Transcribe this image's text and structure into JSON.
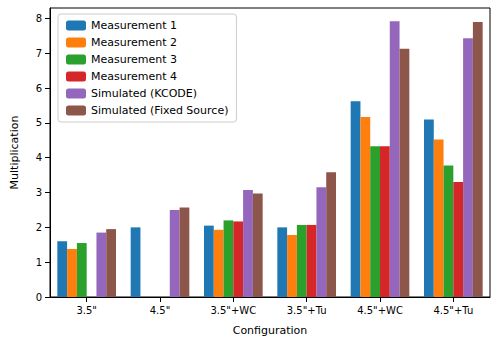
{
  "chart_data": {
    "type": "bar",
    "x_label": "Configuration",
    "y_label": "Multiplication",
    "categories": [
      "3.5\"",
      "4.5\"",
      "3.5\"+WC",
      "3.5\"+Tu",
      "4.5\"+WC",
      "4.5\"+Tu"
    ],
    "series": [
      {
        "name": "Measurement 1",
        "color": "#1f77b4",
        "values": [
          1.6,
          2.0,
          2.05,
          2.0,
          5.62,
          5.1
        ]
      },
      {
        "name": "Measurement 2",
        "color": "#ff7f0e",
        "values": [
          1.38,
          null,
          1.93,
          1.78,
          5.17,
          4.52
        ]
      },
      {
        "name": "Measurement 3",
        "color": "#2ca02c",
        "values": [
          1.55,
          null,
          2.2,
          2.07,
          4.33,
          3.78
        ]
      },
      {
        "name": "Measurement 4",
        "color": "#d62728",
        "values": [
          null,
          null,
          2.17,
          2.07,
          4.33,
          3.3
        ]
      },
      {
        "name": "Simulated (KCODE)",
        "color": "#9467bd",
        "values": [
          1.85,
          2.5,
          3.07,
          3.15,
          7.92,
          7.43
        ]
      },
      {
        "name": "Simulated (Fixed Source)",
        "color": "#8c564b",
        "values": [
          1.95,
          2.57,
          2.97,
          3.58,
          7.13,
          7.9
        ]
      }
    ],
    "ylim": [
      0,
      8.3
    ],
    "yticks": [
      0,
      1,
      2,
      3,
      4,
      5,
      6,
      7,
      8
    ],
    "grid": false,
    "legend": "upper left"
  }
}
